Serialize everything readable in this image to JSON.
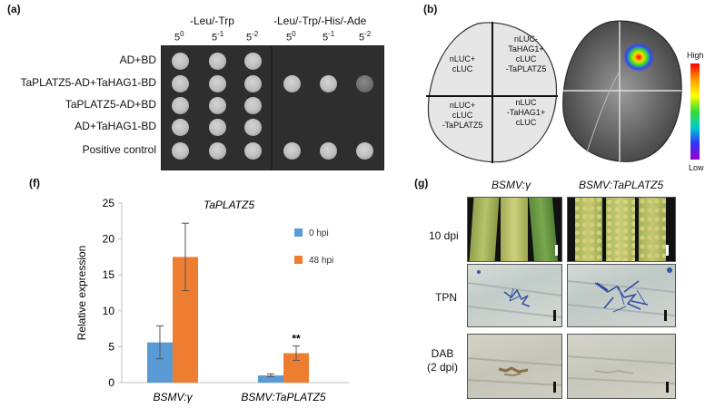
{
  "panel_a": {
    "label": "(a)",
    "plate1_header": "-Leu/-Trp",
    "plate2_header": "-Leu/-Trp/-His/-Ade",
    "dilutions": [
      {
        "base": "5",
        "exp": "0"
      },
      {
        "base": "5",
        "exp": "-1"
      },
      {
        "base": "5",
        "exp": "-2"
      }
    ],
    "rows": [
      {
        "label": "AD+BD",
        "plate1": [
          1,
          1,
          1
        ],
        "plate2": [
          0,
          0,
          0
        ]
      },
      {
        "label": "TaPLATZ5-AD+TaHAG1-BD",
        "plate1": [
          1,
          1,
          1
        ],
        "plate2": [
          1,
          1,
          1
        ]
      },
      {
        "label": "TaPLATZ5-AD+BD",
        "plate1": [
          1,
          1,
          1
        ],
        "plate2": [
          0,
          0,
          0
        ]
      },
      {
        "label": "AD+TaHAG1-BD",
        "plate1": [
          1,
          1,
          1
        ],
        "plate2": [
          0,
          0,
          0
        ]
      },
      {
        "label": "Positive control",
        "plate1": [
          1,
          1,
          1
        ],
        "plate2": [
          1,
          1,
          1
        ]
      }
    ]
  },
  "panel_b": {
    "label": "(b)",
    "quadrants": {
      "top_left": "nLUC+\ncLUC",
      "top_right": "nLUC-\nTaHAG1+\ncLUC\n-TaPLATZ5",
      "bottom_left": "nLUC+\ncLUC\n-TaPLATZ5",
      "bottom_right": "nLUC\n-TaHAG1+\ncLUC"
    },
    "scale_high": "High",
    "scale_low": "Low"
  },
  "panel_f": {
    "label": "(f)",
    "chart_data": {
      "type": "bar",
      "title": "TaPLATZ5",
      "xlabel": "",
      "ylabel": "Relative expression",
      "ylim": [
        0,
        25
      ],
      "yticks": [
        0,
        5,
        10,
        15,
        20,
        25
      ],
      "categories": [
        "BSMV:γ",
        "BSMV:TaPLATZ5"
      ],
      "series": [
        {
          "name": "0 hpi",
          "color": "#5b9bd5",
          "values": [
            5.6,
            1.0
          ],
          "errors": [
            2.3,
            0.2
          ]
        },
        {
          "name": "48 hpi",
          "color": "#ed7d31",
          "values": [
            17.5,
            4.1
          ],
          "errors": [
            4.7,
            1.0
          ]
        }
      ],
      "annotations": [
        {
          "category": 1,
          "series": 1,
          "text": "**"
        }
      ],
      "legend": "top-right",
      "grid": false
    }
  },
  "panel_g": {
    "label": "(g)",
    "col_headers": [
      "BSMV:γ",
      "BSMV:TaPLATZ5"
    ],
    "row_labels": [
      "10 dpi",
      "TPN",
      "DAB\n(2 dpi)"
    ]
  }
}
